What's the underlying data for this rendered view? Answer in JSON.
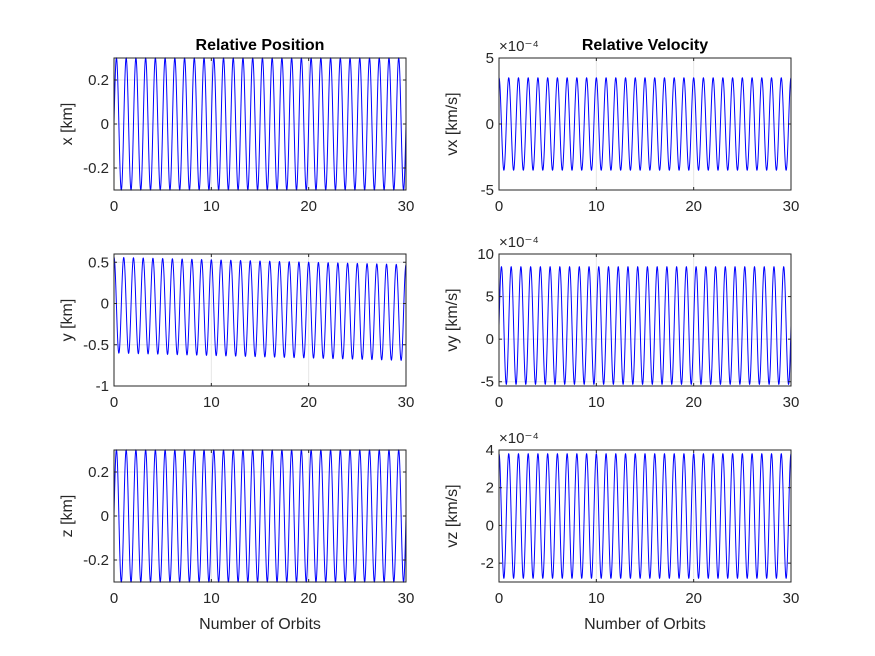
{
  "chart_data": [
    {
      "type": "line",
      "title": "Relative Position",
      "xlabel": "",
      "ylabel": "x [km]",
      "exponent": "",
      "xlim": [
        0,
        30
      ],
      "ylim": [
        -0.3,
        0.3
      ],
      "xticks": [
        "0",
        "10",
        "20",
        "30"
      ],
      "xtick_values": [
        0,
        10,
        20,
        30
      ],
      "yticks": [
        "-0.2",
        "0",
        "0.2"
      ],
      "ytick_values": [
        -0.2,
        0,
        0.2
      ],
      "series": [
        {
          "color": "#0000ff",
          "cycles": 30,
          "amplitude": 0.3,
          "offset": 0,
          "drift": 0,
          "phase": "sine"
        }
      ]
    },
    {
      "type": "line",
      "title": "Relative Velocity",
      "xlabel": "",
      "ylabel": "vx [km/s]",
      "exponent": "×10⁻⁴",
      "xlim": [
        0,
        30
      ],
      "ylim": [
        -5,
        5
      ],
      "xticks": [
        "0",
        "10",
        "20",
        "30"
      ],
      "xtick_values": [
        0,
        10,
        20,
        30
      ],
      "yticks": [
        "-5",
        "0",
        "5"
      ],
      "ytick_values": [
        -5,
        0,
        5
      ],
      "series": [
        {
          "color": "#0000ff",
          "cycles": 30,
          "amplitude": 3.5,
          "offset": 0,
          "drift": 0,
          "phase": "cosine"
        }
      ]
    },
    {
      "type": "line",
      "title": "",
      "xlabel": "",
      "ylabel": "y [km]",
      "exponent": "",
      "xlim": [
        0,
        30
      ],
      "ylim": [
        -1,
        0.6
      ],
      "xticks": [
        "0",
        "10",
        "20",
        "30"
      ],
      "xtick_values": [
        0,
        10,
        20,
        30
      ],
      "yticks": [
        "-1",
        "-0.5",
        "0",
        "0.5"
      ],
      "ytick_values": [
        -1,
        -0.5,
        0,
        0.5
      ],
      "series": [
        {
          "color": "#0000ff",
          "cycles": 30,
          "amplitude": 0.58,
          "offset": -0.02,
          "drift": -0.09,
          "phase": "cosine"
        }
      ]
    },
    {
      "type": "line",
      "title": "",
      "xlabel": "",
      "ylabel": "vy [km/s]",
      "exponent": "×10⁻⁴",
      "xlim": [
        0,
        30
      ],
      "ylim": [
        -5.5,
        10
      ],
      "xticks": [
        "0",
        "10",
        "20",
        "30"
      ],
      "xtick_values": [
        0,
        10,
        20,
        30
      ],
      "yticks": [
        "-5",
        "0",
        "5",
        "10"
      ],
      "ytick_values": [
        -5,
        0,
        5,
        10
      ],
      "series": [
        {
          "color": "#0000ff",
          "cycles": 30,
          "amplitude": 6.9,
          "offset": 1.6,
          "drift": 0,
          "phase": "sine"
        }
      ]
    },
    {
      "type": "line",
      "title": "",
      "xlabel": "Number of Orbits",
      "ylabel": "z [km]",
      "exponent": "",
      "xlim": [
        0,
        30
      ],
      "ylim": [
        -0.3,
        0.3
      ],
      "xticks": [
        "0",
        "10",
        "20",
        "30"
      ],
      "xtick_values": [
        0,
        10,
        20,
        30
      ],
      "yticks": [
        "-0.2",
        "0",
        "0.2"
      ],
      "ytick_values": [
        -0.2,
        0,
        0.2
      ],
      "series": [
        {
          "color": "#0000ff",
          "cycles": 30,
          "amplitude": 0.3,
          "offset": 0,
          "drift": 0,
          "phase": "sine"
        }
      ]
    },
    {
      "type": "line",
      "title": "",
      "xlabel": "Number of Orbits",
      "ylabel": "vz [km/s]",
      "exponent": "×10⁻⁴",
      "xlim": [
        0,
        30
      ],
      "ylim": [
        -3,
        4
      ],
      "xticks": [
        "0",
        "10",
        "20",
        "30"
      ],
      "xtick_values": [
        0,
        10,
        20,
        30
      ],
      "yticks": [
        "-2",
        "0",
        "2",
        "4"
      ],
      "ytick_values": [
        -2,
        0,
        2,
        4
      ],
      "series": [
        {
          "color": "#0000ff",
          "cycles": 30,
          "amplitude": 3.3,
          "offset": 0.5,
          "drift": 0,
          "phase": "cosine"
        }
      ]
    }
  ]
}
